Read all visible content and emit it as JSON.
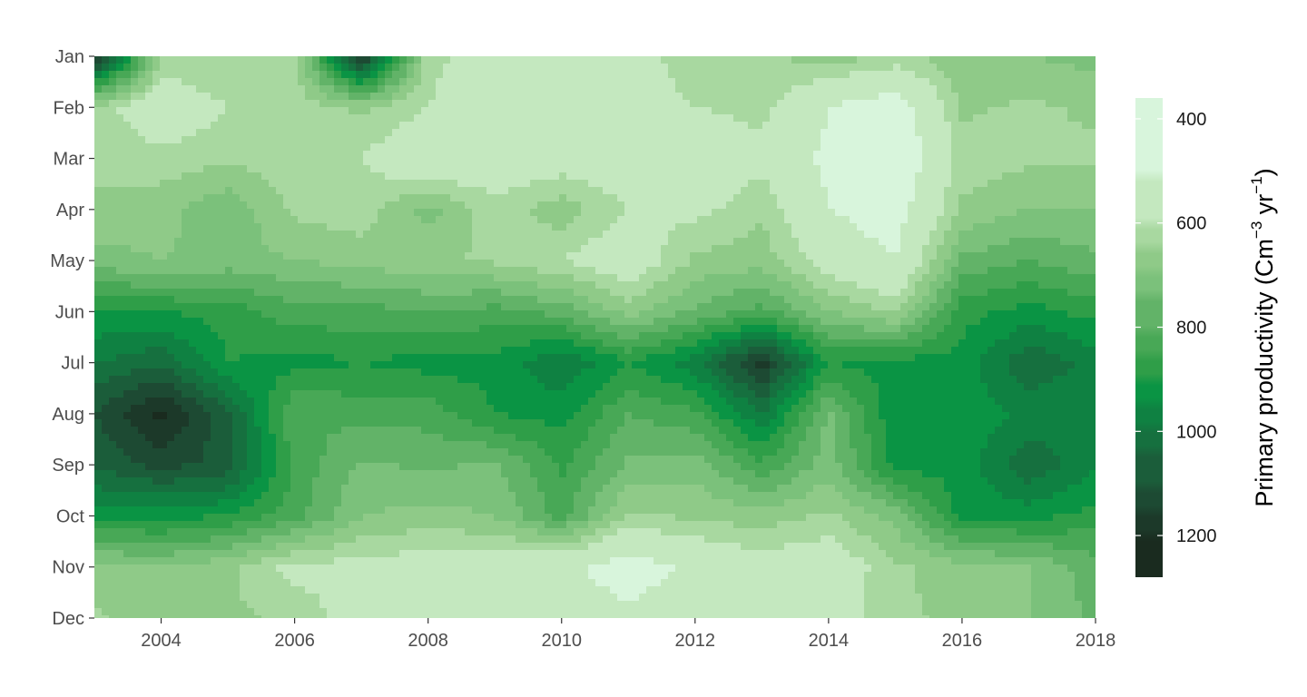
{
  "chart_data": {
    "type": "heatmap",
    "title": "",
    "xlabel": "",
    "ylabel": "",
    "x": [
      2003,
      2004,
      2005,
      2006,
      2007,
      2008,
      2009,
      2010,
      2011,
      2012,
      2013,
      2014,
      2015,
      2016,
      2017,
      2018
    ],
    "x_ticks": [
      "2004",
      "2006",
      "2008",
      "2010",
      "2012",
      "2014",
      "2016",
      "2018"
    ],
    "xlim": [
      2003,
      2018
    ],
    "y_categories": [
      "Jan",
      "Feb",
      "Mar",
      "Apr",
      "May",
      "Jun",
      "Jul",
      "Aug",
      "Sep",
      "Oct",
      "Nov",
      "Dec"
    ],
    "z": [
      [
        1200,
        640,
        650,
        640,
        1180,
        620,
        560,
        560,
        560,
        640,
        640,
        680,
        640,
        680,
        700,
        720
      ],
      [
        630,
        540,
        600,
        620,
        660,
        600,
        540,
        540,
        560,
        600,
        620,
        500,
        440,
        660,
        640,
        660
      ],
      [
        640,
        620,
        640,
        620,
        600,
        520,
        540,
        560,
        540,
        520,
        580,
        480,
        420,
        620,
        640,
        640
      ],
      [
        660,
        680,
        740,
        640,
        620,
        720,
        620,
        680,
        600,
        580,
        640,
        500,
        460,
        660,
        700,
        700
      ],
      [
        720,
        700,
        720,
        700,
        680,
        660,
        640,
        600,
        540,
        660,
        680,
        560,
        500,
        760,
        800,
        760
      ],
      [
        900,
        900,
        880,
        820,
        820,
        800,
        820,
        780,
        680,
        760,
        820,
        700,
        640,
        880,
        920,
        880
      ],
      [
        1000,
        1040,
        900,
        920,
        900,
        920,
        920,
        1000,
        900,
        980,
        1180,
        900,
        920,
        920,
        1040,
        980
      ],
      [
        1100,
        1220,
        1060,
        800,
        820,
        820,
        900,
        920,
        800,
        840,
        1000,
        740,
        940,
        920,
        960,
        980
      ],
      [
        1060,
        1120,
        1080,
        840,
        740,
        760,
        740,
        860,
        740,
        720,
        840,
        720,
        920,
        920,
        1040,
        960
      ],
      [
        920,
        920,
        900,
        820,
        700,
        680,
        700,
        820,
        640,
        660,
        680,
        640,
        720,
        920,
        920,
        880
      ],
      [
        680,
        700,
        660,
        580,
        580,
        560,
        560,
        520,
        460,
        520,
        560,
        540,
        640,
        680,
        700,
        780
      ],
      [
        640,
        700,
        660,
        640,
        560,
        580,
        560,
        540,
        520,
        540,
        540,
        560,
        640,
        660,
        700,
        760
      ]
    ],
    "colorbar": {
      "title": "Primary productivity",
      "unit_main": "Cm",
      "unit_exp1": "−3",
      "unit_mid": " yr",
      "unit_exp2": "−1",
      "ticks": [
        "400",
        "600",
        "800",
        "1000",
        "1200"
      ],
      "range": [
        360,
        1280
      ]
    },
    "levels": [
      400,
      500,
      600,
      650,
      700,
      750,
      800,
      850,
      900,
      950,
      1000,
      1050,
      1100,
      1150,
      1200
    ],
    "colors": [
      "#d8f5dc",
      "#c4e8bf",
      "#a8d8a0",
      "#8fca88",
      "#7bc17b",
      "#62b368",
      "#48a856",
      "#2f9e48",
      "#0a9444",
      "#0f8142",
      "#16703f",
      "#1b5d3a",
      "#1d4a33",
      "#1c3929",
      "#1a2b1f"
    ],
    "legend_position": "right",
    "grid": false
  }
}
